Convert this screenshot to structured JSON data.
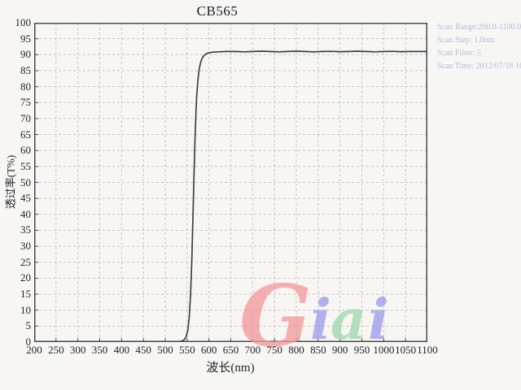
{
  "page": {
    "background": "#f7f6f3"
  },
  "title": "CB565",
  "scan_info": {
    "lines": [
      "Scan Range:200.0-1100.0nm",
      "Scan Step:  1.0nm",
      "Scan Filter:  5",
      "Scan Time:  2012/07/18  16"
    ],
    "text_color": "#b4bcde"
  },
  "watermark": {
    "text": "Giai",
    "letters": [
      {
        "char": "G",
        "color": "#f29a9c"
      },
      {
        "char": "i",
        "color": "#9d9deb"
      },
      {
        "char": "a",
        "color": "#9fd8ae"
      },
      {
        "char": "i",
        "color": "#9d9deb"
      }
    ]
  },
  "chart_data": {
    "type": "line",
    "title": "CB565",
    "xlabel": "波长(nm)",
    "ylabel": "透过率(T%)",
    "xlim": [
      200,
      1100
    ],
    "ylim": [
      0,
      100
    ],
    "xticks": [
      200,
      250,
      300,
      350,
      400,
      450,
      500,
      550,
      600,
      650,
      700,
      750,
      800,
      850,
      900,
      950,
      1000,
      1050,
      1100
    ],
    "yticks": [
      0,
      5,
      10,
      15,
      20,
      25,
      30,
      35,
      40,
      45,
      50,
      55,
      60,
      65,
      70,
      75,
      80,
      85,
      90,
      95,
      100
    ],
    "grid": "dashed",
    "legend": "none",
    "line_color": "#3f3f48",
    "grid_color": "#c3c3c3",
    "axis_color": "#4a4a55",
    "text_color": "#23232e",
    "points": [
      [
        200,
        0
      ],
      [
        250,
        0
      ],
      [
        300,
        0
      ],
      [
        350,
        0
      ],
      [
        400,
        0
      ],
      [
        450,
        0
      ],
      [
        500,
        0
      ],
      [
        520,
        0
      ],
      [
        530,
        0.1
      ],
      [
        538,
        0.3
      ],
      [
        544,
        0.8
      ],
      [
        548,
        1.8
      ],
      [
        552,
        4
      ],
      [
        555,
        8
      ],
      [
        558,
        15
      ],
      [
        561,
        26
      ],
      [
        564,
        42
      ],
      [
        566,
        53
      ],
      [
        568,
        63
      ],
      [
        570,
        71
      ],
      [
        572,
        77
      ],
      [
        575,
        82.5
      ],
      [
        578,
        85.8
      ],
      [
        581,
        87.6
      ],
      [
        584,
        88.8
      ],
      [
        588,
        89.6
      ],
      [
        592,
        90.1
      ],
      [
        596,
        90.4
      ],
      [
        600,
        90.6
      ],
      [
        610,
        90.8
      ],
      [
        620,
        90.9
      ],
      [
        640,
        91
      ],
      [
        660,
        91
      ],
      [
        680,
        90.9
      ],
      [
        700,
        91
      ],
      [
        720,
        91.1
      ],
      [
        740,
        91
      ],
      [
        760,
        90.9
      ],
      [
        780,
        91
      ],
      [
        800,
        91.1
      ],
      [
        820,
        91
      ],
      [
        840,
        90.9
      ],
      [
        860,
        91
      ],
      [
        880,
        91.05
      ],
      [
        900,
        90.95
      ],
      [
        920,
        91
      ],
      [
        940,
        91.1
      ],
      [
        960,
        91
      ],
      [
        980,
        90.9
      ],
      [
        1000,
        91
      ],
      [
        1020,
        91.05
      ],
      [
        1040,
        90.95
      ],
      [
        1060,
        91
      ],
      [
        1080,
        91
      ],
      [
        1100,
        91
      ]
    ]
  }
}
